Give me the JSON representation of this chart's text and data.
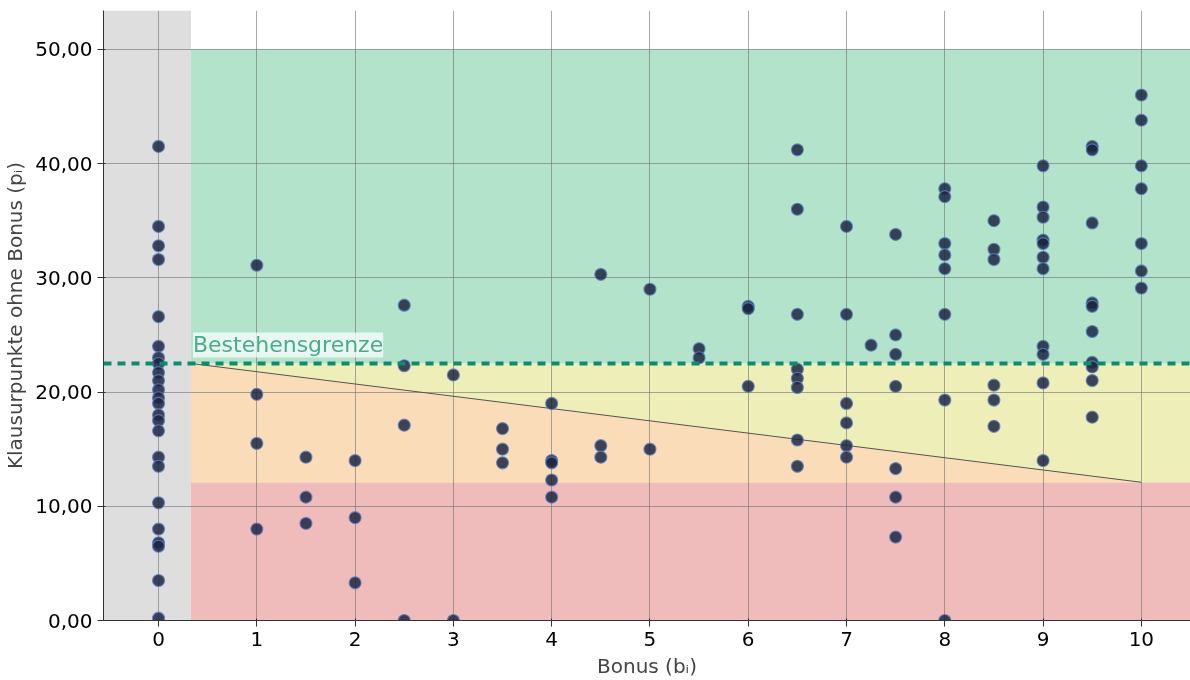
{
  "chart_data": {
    "type": "scatter",
    "xlabel": "Bonus (bᵢ)",
    "ylabel": "Klausurpunkte ohne Bonus (pᵢ)",
    "xlim": [
      -0.56,
      10.5
    ],
    "ylim": [
      0,
      53.4
    ],
    "xticks": [
      0,
      1,
      2,
      3,
      4,
      5,
      6,
      7,
      8,
      9,
      10
    ],
    "yticks": [
      {
        "value": 0,
        "label": "0,00"
      },
      {
        "value": 10,
        "label": "10,00"
      },
      {
        "value": 20,
        "label": "20,00"
      },
      {
        "value": 30,
        "label": "30,00"
      },
      {
        "value": 40,
        "label": "40,00"
      },
      {
        "value": 50,
        "label": "50,00"
      }
    ],
    "grid": true,
    "marker": "circle",
    "bands": [
      {
        "axis": "x",
        "from": -0.56,
        "to": 0.33,
        "color": "#dedede"
      },
      {
        "axis": "y",
        "from": 0,
        "to": 12.1,
        "color": "#efbbbb"
      },
      {
        "axis": "y",
        "from": 12.1,
        "to": 22.5,
        "color": "#eeeeb8"
      },
      {
        "axis": "y",
        "from": 22.5,
        "to": 50,
        "color": "#b3e3ca"
      }
    ],
    "ref_lines": [
      {
        "axis": "y",
        "value": 22.5,
        "label": "Bestehensgrenze",
        "color": "#108a6c",
        "line_style": "dashed"
      }
    ],
    "series": [
      {
        "type": "area",
        "color": "#fbdcb8",
        "marker": "none",
        "x": [
          0.33,
          10
        ],
        "values": [
          22.5,
          12.1
        ]
      },
      {
        "color": "#1c2541",
        "x": [
          0,
          0,
          0,
          0,
          0,
          0,
          0,
          0,
          0,
          0,
          0,
          0,
          0,
          0,
          0,
          0,
          0,
          0,
          0,
          0,
          0,
          0,
          0,
          0,
          1,
          1,
          1,
          1,
          1.5,
          1.5,
          1.5,
          2,
          2,
          2,
          2.5,
          2.5,
          2.5,
          2.5,
          3,
          3,
          3.5,
          3.5,
          3.5,
          4,
          4,
          4,
          4,
          4,
          4.5,
          4.5,
          4.5,
          5,
          5,
          5.5,
          5.5,
          6,
          6,
          6,
          6.5,
          6.5,
          6.5,
          6.5,
          6.5,
          6.5,
          6.5,
          6.5,
          7,
          7,
          7,
          7,
          7,
          7,
          7.25,
          7.5,
          7.5,
          7.5,
          7.5,
          7.5,
          7.5,
          7.5,
          8,
          8,
          8,
          8,
          8,
          8,
          8,
          8,
          8.5,
          8.5,
          8.5,
          8.5,
          8.5,
          8.5,
          9,
          9,
          9,
          9,
          9,
          9,
          9,
          9,
          9,
          9,
          9,
          9.5,
          9.5,
          9.5,
          9.5,
          9.5,
          9.5,
          9.5,
          9.5,
          9.5,
          9.5,
          10,
          10,
          10,
          10,
          10,
          10,
          10
        ],
        "values": [
          41.5,
          34.5,
          32.8,
          31.6,
          26.6,
          24.0,
          23.0,
          22.5,
          21.7,
          21.0,
          20.2,
          19.5,
          19.0,
          18.0,
          17.5,
          16.6,
          14.3,
          13.5,
          10.3,
          8.0,
          6.8,
          6.5,
          3.5,
          0.2,
          31.1,
          19.8,
          15.5,
          8.0,
          14.3,
          10.8,
          8.5,
          14.0,
          9.0,
          3.3,
          27.6,
          22.3,
          17.1,
          0,
          21.5,
          0,
          16.8,
          15.0,
          13.8,
          19.0,
          14.0,
          13.8,
          12.3,
          10.8,
          30.3,
          15.3,
          14.3,
          29.0,
          15.0,
          23.8,
          23.0,
          27.5,
          27.3,
          20.5,
          41.2,
          36.0,
          26.8,
          22.0,
          21.2,
          20.4,
          15.8,
          13.5,
          34.5,
          26.8,
          19.0,
          17.3,
          15.3,
          14.3,
          24.1,
          33.8,
          25.0,
          23.3,
          20.5,
          13.3,
          10.8,
          7.3,
          37.8,
          37.1,
          33.0,
          32.0,
          30.8,
          26.8,
          19.3,
          0,
          35.0,
          32.5,
          31.6,
          20.6,
          19.3,
          17.0,
          39.8,
          36.2,
          35.3,
          33.3,
          33.0,
          31.8,
          30.8,
          24.0,
          23.3,
          20.8,
          14.0,
          41.5,
          41.2,
          34.8,
          27.8,
          27.5,
          25.3,
          22.6,
          22.2,
          21.0,
          17.8,
          46.0,
          43.8,
          39.8,
          37.8,
          33.0,
          30.6,
          29.1
        ]
      }
    ]
  }
}
